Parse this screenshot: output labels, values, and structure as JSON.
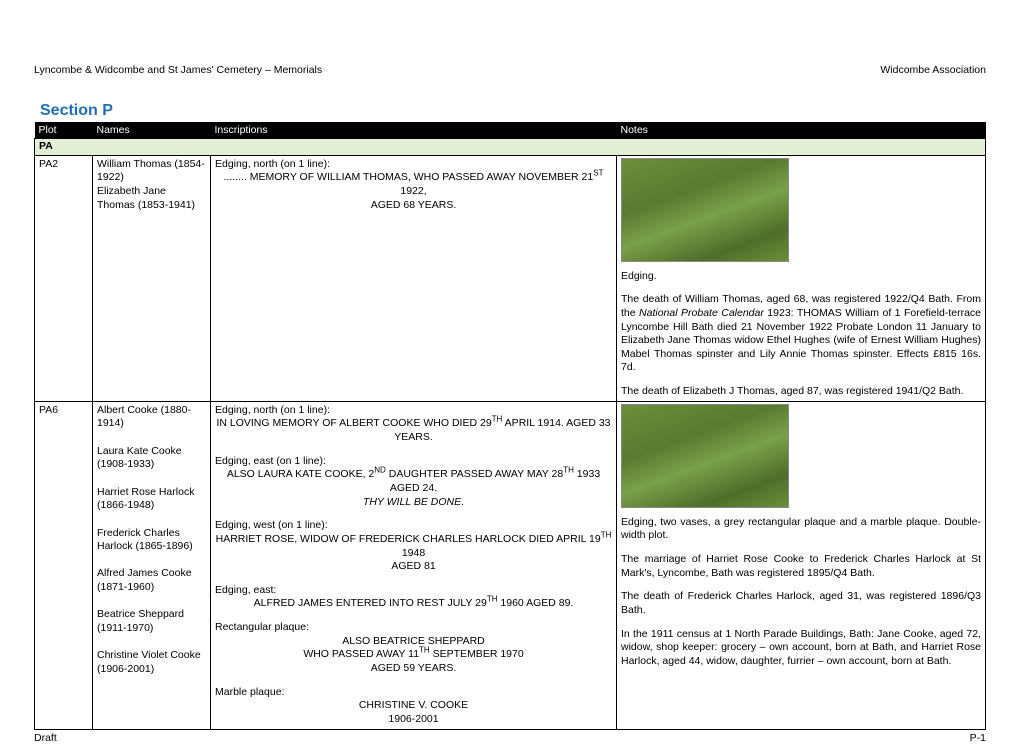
{
  "header": {
    "left": "Lyncombe & Widcombe and St James' Cemetery – Memorials",
    "right": "Widcombe Association"
  },
  "section_title": "Section P",
  "columns": {
    "plot": "Plot",
    "names": "Names",
    "inscriptions": "Inscriptions",
    "notes": "Notes"
  },
  "subsection": "PA",
  "rows": [
    {
      "plot": "PA2",
      "names": [
        "William Thomas (1854-1922)",
        "",
        "Elizabeth Jane Thomas (1853-1941)"
      ],
      "inscriptions": {
        "b1_label": "Edging, north (on 1 line):",
        "b1_l1a": "........ MEMORY OF WILLIAM THOMAS, WHO PASSED AWAY NOVEMBER 21",
        "b1_l1sup": "ST",
        "b1_l1b": " 1922,",
        "b1_l2": "AGED 68 YEARS."
      },
      "notes": {
        "caption": "Edging.",
        "p1": "The death of William Thomas, aged 68, was registered 1922/Q4 Bath. From the ",
        "p1_em": "National Probate Calendar",
        "p1_b": " 1923: THOMAS William of 1 Forefield-terrace Lyncombe Hill Bath died 21 November 1922 Probate London 11 January to Elizabeth Jane Thomas widow Ethel Hughes (wife of Ernest William Hughes) Mabel Thomas spinster and Lily Annie Thomas spinster. Effects £815 16s. 7d.",
        "p2": "The death of Elizabeth J Thomas, aged 87, was registered 1941/Q2 Bath."
      }
    },
    {
      "plot": "PA6",
      "names": [
        "Albert Cooke (1880-1914)",
        "",
        "Laura Kate Cooke (1908-1933)",
        "",
        "Harriet Rose Harlock (1866-1948)",
        "",
        "Frederick Charles Harlock (1865-1896)",
        "",
        "Alfred James Cooke (1871-1960)",
        "",
        "Beatrice Sheppard (1911-1970)",
        "",
        "Christine Violet Cooke (1906-2001)"
      ],
      "inscriptions": {
        "b1_label": "Edging, north (on 1 line):",
        "b1_l1a": "IN LOVING MEMORY OF ALBERT COOKE WHO DIED 29",
        "b1_l1sup": "TH",
        "b1_l1b": " APRIL 1914. AGED 33",
        "b1_l2": "YEARS.",
        "b2_label": "Edging, east (on 1 line):",
        "b2_l1a": "ALSO LAURA KATE COOKE, 2",
        "b2_l1sup": "ND",
        "b2_l1b": " DAUGHTER PASSED AWAY MAY 28",
        "b2_l1sup2": "TH",
        "b2_l1c": " 1933 AGED 24.",
        "b2_l2": "THY WILL BE DONE",
        "b3_label": "Edging, west (on 1 line):",
        "b3_l1a": "HARRIET ROSE, WIDOW OF FREDERICK CHARLES HARLOCK DIED APRIL 19",
        "b3_l1sup": "TH",
        "b3_l1b": " 1948",
        "b3_l2": "AGED 81",
        "b4_label": "Edging, east:",
        "b4_l1a": "ALFRED JAMES ENTERED INTO REST JULY 29",
        "b4_l1sup": "TH",
        "b4_l1b": " 1960 AGED 89.",
        "b5_label": "Rectangular plaque:",
        "b5_l1": "ALSO BEATRICE SHEPPARD",
        "b5_l2a": "WHO PASSED AWAY 11",
        "b5_l2sup": "TH",
        "b5_l2b": " SEPTEMBER 1970",
        "b5_l3": "AGED 59 YEARS.",
        "b6_label": "Marble plaque:",
        "b6_l1": "CHRISTINE V. COOKE",
        "b6_l2": "1906-2001"
      },
      "notes": {
        "caption": "Edging, two vases, a grey rectangular plaque and a marble plaque. Double-width plot.",
        "p1": "The marriage of Harriet Rose Cooke to Frederick Charles Harlock at St Mark's, Lyncombe, Bath was registered 1895/Q4 Bath.",
        "p2": "The death of Frederick Charles Harlock, aged 31, was registered 1896/Q3 Bath.",
        "p3": "In the 1911 census at 1 North Parade Buildings, Bath: Jane Cooke, aged 72, widow, shop keeper: grocery – own account, born at Bath, and Harriet Rose Harlock, aged 44, widow, daughter, furrier – own account, born at Bath."
      }
    }
  ],
  "footer": {
    "left": "Draft",
    "right": "P-1"
  }
}
